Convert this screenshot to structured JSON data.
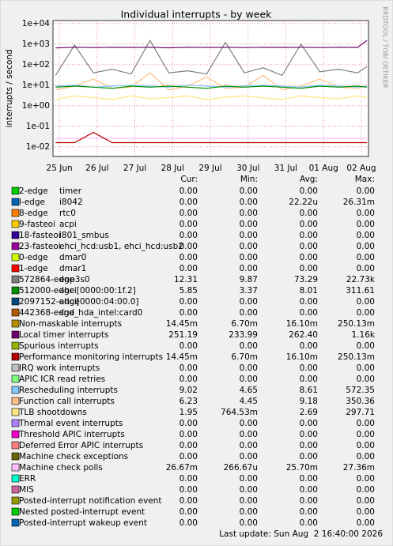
{
  "chart_data": {
    "type": "line",
    "title": "Individual interrupts - by week",
    "y_label": "interrupts / second",
    "log_scale": true,
    "grid": true,
    "ylim": [
      0.0034,
      14000
    ],
    "yticks": [
      {
        "value": 0.01,
        "label": "1e-02"
      },
      {
        "value": 0.1,
        "label": "1e-01"
      },
      {
        "value": 1,
        "label": "1e+00"
      },
      {
        "value": 10,
        "label": "1e+01"
      },
      {
        "value": 100,
        "label": "1e+02"
      },
      {
        "value": 1000,
        "label": "1e+03"
      },
      {
        "value": 10000,
        "label": "1e+04"
      }
    ],
    "xlim": [
      -0.17,
      8.19
    ],
    "xticks": [
      {
        "value": 0,
        "label": "25 Jun"
      },
      {
        "value": 1,
        "label": "26 Jul"
      },
      {
        "value": 2,
        "label": "27 Jul"
      },
      {
        "value": 3,
        "label": "28 Jul"
      },
      {
        "value": 4,
        "label": "29 Jul"
      },
      {
        "value": 5,
        "label": "30 Jul"
      },
      {
        "value": 6,
        "label": "31 Jul"
      },
      {
        "value": 7,
        "label": "01 Aug"
      },
      {
        "value": 8,
        "label": "02 Aug"
      }
    ],
    "x": [
      -0.1,
      0.4,
      0.9,
      1.4,
      1.9,
      2.4,
      2.9,
      3.4,
      3.9,
      4.4,
      4.9,
      5.4,
      5.9,
      6.4,
      6.9,
      7.4,
      7.9,
      8.15
    ],
    "series": [
      {
        "color": "#FFE680",
        "values": [
          2,
          3,
          2.5,
          2,
          3,
          2.2,
          2.5,
          3,
          2,
          2.6,
          3,
          2.4,
          2,
          3,
          2.5,
          2.2,
          3,
          2.5
        ]
      },
      {
        "color": "#FFC080",
        "values": [
          6,
          9,
          20,
          7,
          8,
          40,
          6,
          9,
          25,
          7,
          8,
          30,
          6,
          9,
          20,
          8,
          7,
          9
        ]
      },
      {
        "color": "#80C9FF",
        "values": [
          9,
          10,
          8,
          9,
          10,
          9,
          8,
          10,
          9,
          8,
          9,
          10,
          9,
          8,
          10,
          9,
          8,
          9
        ]
      },
      {
        "color": "#008F00",
        "values": [
          8,
          9,
          8,
          7,
          9,
          8,
          9,
          8,
          7,
          9,
          8,
          9,
          8,
          7,
          9,
          8,
          9,
          8
        ]
      },
      {
        "color": "#808080",
        "values": [
          30,
          900,
          40,
          60,
          35,
          1500,
          40,
          50,
          35,
          1200,
          40,
          70,
          30,
          1000,
          45,
          60,
          40,
          80
        ]
      },
      {
        "color": "#6B006B",
        "values": [
          650,
          700,
          680,
          700,
          690,
          700,
          660,
          700,
          690,
          700,
          680,
          700,
          690,
          700,
          680,
          700,
          690,
          1500
        ]
      },
      {
        "color": "#FFBFFF",
        "values": [
          0.026,
          0.026,
          0.026,
          0.026,
          0.026,
          0.026,
          0.026,
          0.026,
          0.026,
          0.026,
          0.026,
          0.026,
          0.026,
          0.026,
          0.026,
          0.026,
          0.026,
          0.026
        ]
      },
      {
        "color": "#B30000",
        "values": [
          0.016,
          0.016,
          0.05,
          0.016,
          0.016,
          0.016,
          0.016,
          0.016,
          0.016,
          0.016,
          0.016,
          0.016,
          0.016,
          0.016,
          0.016,
          0.016,
          0.016,
          0.016
        ]
      }
    ]
  },
  "side_text": "RRDTOOL / TOBI OETIKER",
  "legend": {
    "columns": [
      "Cur:",
      "Min:",
      "Avg:",
      "Max:"
    ],
    "rows": [
      {
        "color": "#00CC00",
        "name": "2-edge",
        "description": "timer",
        "cur": "0.00",
        "min": "0.00",
        "avg": "0.00",
        "max": "0.00"
      },
      {
        "color": "#0066B3",
        "name": "l-edge",
        "description": "i8042",
        "cur": "0.00",
        "min": "0.00",
        "avg": "22.22u",
        "max": "26.31m"
      },
      {
        "color": "#FF8000",
        "name": "8-edge",
        "description": "rtc0",
        "cur": "0.00",
        "min": "0.00",
        "avg": "0.00",
        "max": "0.00"
      },
      {
        "color": "#FFCC00",
        "name": "9-fasteoi",
        "description": "acpi",
        "cur": "0.00",
        "min": "0.00",
        "avg": "0.00",
        "max": "0.00"
      },
      {
        "color": "#330099",
        "name": "18-fasteoi",
        "description": "i801_smbus",
        "cur": "0.00",
        "min": "0.00",
        "avg": "0.00",
        "max": "0.00"
      },
      {
        "color": "#990099",
        "name": "23-fasteoi",
        "description": "ehci_hcd:usb1, ehci_hcd:usb2",
        "cur": "0.00",
        "min": "0.00",
        "avg": "0.00",
        "max": "0.00"
      },
      {
        "color": "#CCFF00",
        "name": "0-edge",
        "description": "dmar0",
        "cur": "0.00",
        "min": "0.00",
        "avg": "0.00",
        "max": "0.00"
      },
      {
        "color": "#FF0000",
        "name": "1-edge",
        "description": "dmar1",
        "cur": "0.00",
        "min": "0.00",
        "avg": "0.00",
        "max": "0.00"
      },
      {
        "color": "#808080",
        "name": "572864-edge",
        "description": "enp3s0",
        "cur": "12.31",
        "min": "9.87",
        "avg": "73.29",
        "max": "22.73k"
      },
      {
        "color": "#008F00",
        "name": "512000-edge",
        "description": "ahci[0000:00:1f.2]",
        "cur": "5.85",
        "min": "3.37",
        "avg": "8.01",
        "max": "311.61"
      },
      {
        "color": "#00487D",
        "name": "2097152-edge",
        "description": "ahci[0000:04:00.0]",
        "cur": "0.00",
        "min": "0.00",
        "avg": "0.00",
        "max": "0.00"
      },
      {
        "color": "#B35A00",
        "name": "442368-edge",
        "description": "snd_hda_intel:card0",
        "cur": "0.00",
        "min": "0.00",
        "avg": "0.00",
        "max": "0.00"
      },
      {
        "color": "#B38F00",
        "name": "Non-maskable interrupts",
        "cur": "14.45m",
        "min": "6.70m",
        "avg": "16.10m",
        "max": "250.13m"
      },
      {
        "color": "#6B006B",
        "name": "Local timer interrupts",
        "cur": "251.19",
        "min": "233.99",
        "avg": "262.40",
        "max": "1.16k"
      },
      {
        "color": "#8FB300",
        "name": "Spurious interrupts",
        "cur": "0.00",
        "min": "0.00",
        "avg": "0.00",
        "max": "0.00"
      },
      {
        "color": "#B30000",
        "name": "Performance monitoring interrupts",
        "cur": "14.45m",
        "min": "6.70m",
        "avg": "16.10m",
        "max": "250.13m"
      },
      {
        "color": "#BEBEBE",
        "name": "IRQ work interrupts",
        "cur": "0.00",
        "min": "0.00",
        "avg": "0.00",
        "max": "0.00"
      },
      {
        "color": "#80FF80",
        "name": "APIC ICR read retries",
        "cur": "0.00",
        "min": "0.00",
        "avg": "0.00",
        "max": "0.00"
      },
      {
        "color": "#80C9FF",
        "name": "Rescheduling interrupts",
        "cur": "9.02",
        "min": "4.65",
        "avg": "8.61",
        "max": "572.35"
      },
      {
        "color": "#FFC080",
        "name": "Function call interrupts",
        "cur": "6.23",
        "min": "4.45",
        "avg": "9.18",
        "max": "350.36"
      },
      {
        "color": "#FFE680",
        "name": "TLB shootdowns",
        "cur": "1.95",
        "min": "764.53m",
        "avg": "2.69",
        "max": "297.71"
      },
      {
        "color": "#AA80FF",
        "name": "Thermal event interrupts",
        "cur": "0.00",
        "min": "0.00",
        "avg": "0.00",
        "max": "0.00"
      },
      {
        "color": "#EE00CC",
        "name": "Threshold APIC interrupts",
        "cur": "0.00",
        "min": "0.00",
        "avg": "0.00",
        "max": "0.00"
      },
      {
        "color": "#FF8080",
        "name": "Deferred Error APIC interrupts",
        "cur": "0.00",
        "min": "0.00",
        "avg": "0.00",
        "max": "0.00"
      },
      {
        "color": "#666600",
        "name": "Machine check exceptions",
        "cur": "0.00",
        "min": "0.00",
        "avg": "0.00",
        "max": "0.00"
      },
      {
        "color": "#FFBFFF",
        "name": "Machine check polls",
        "cur": "26.67m",
        "min": "266.67u",
        "avg": "25.70m",
        "max": "27.36m"
      },
      {
        "color": "#00FFCC",
        "name": "ERR",
        "cur": "0.00",
        "min": "0.00",
        "avg": "0.00",
        "max": "0.00"
      },
      {
        "color": "#CC6699",
        "name": "MIS",
        "cur": "0.00",
        "min": "0.00",
        "avg": "0.00",
        "max": "0.00"
      },
      {
        "color": "#999900",
        "name": "Posted-interrupt notification event",
        "cur": "0.00",
        "min": "0.00",
        "avg": "0.00",
        "max": "0.00"
      },
      {
        "color": "#00CC00",
        "name": "Nested posted-interrupt event",
        "cur": "0.00",
        "min": "0.00",
        "avg": "0.00",
        "max": "0.00"
      },
      {
        "color": "#0066B3",
        "name": "Posted-interrupt wakeup event",
        "cur": "0.00",
        "min": "0.00",
        "avg": "0.00",
        "max": "0.00"
      }
    ]
  },
  "footer": "Last update: Sun Aug  2 16:40:00 2026"
}
